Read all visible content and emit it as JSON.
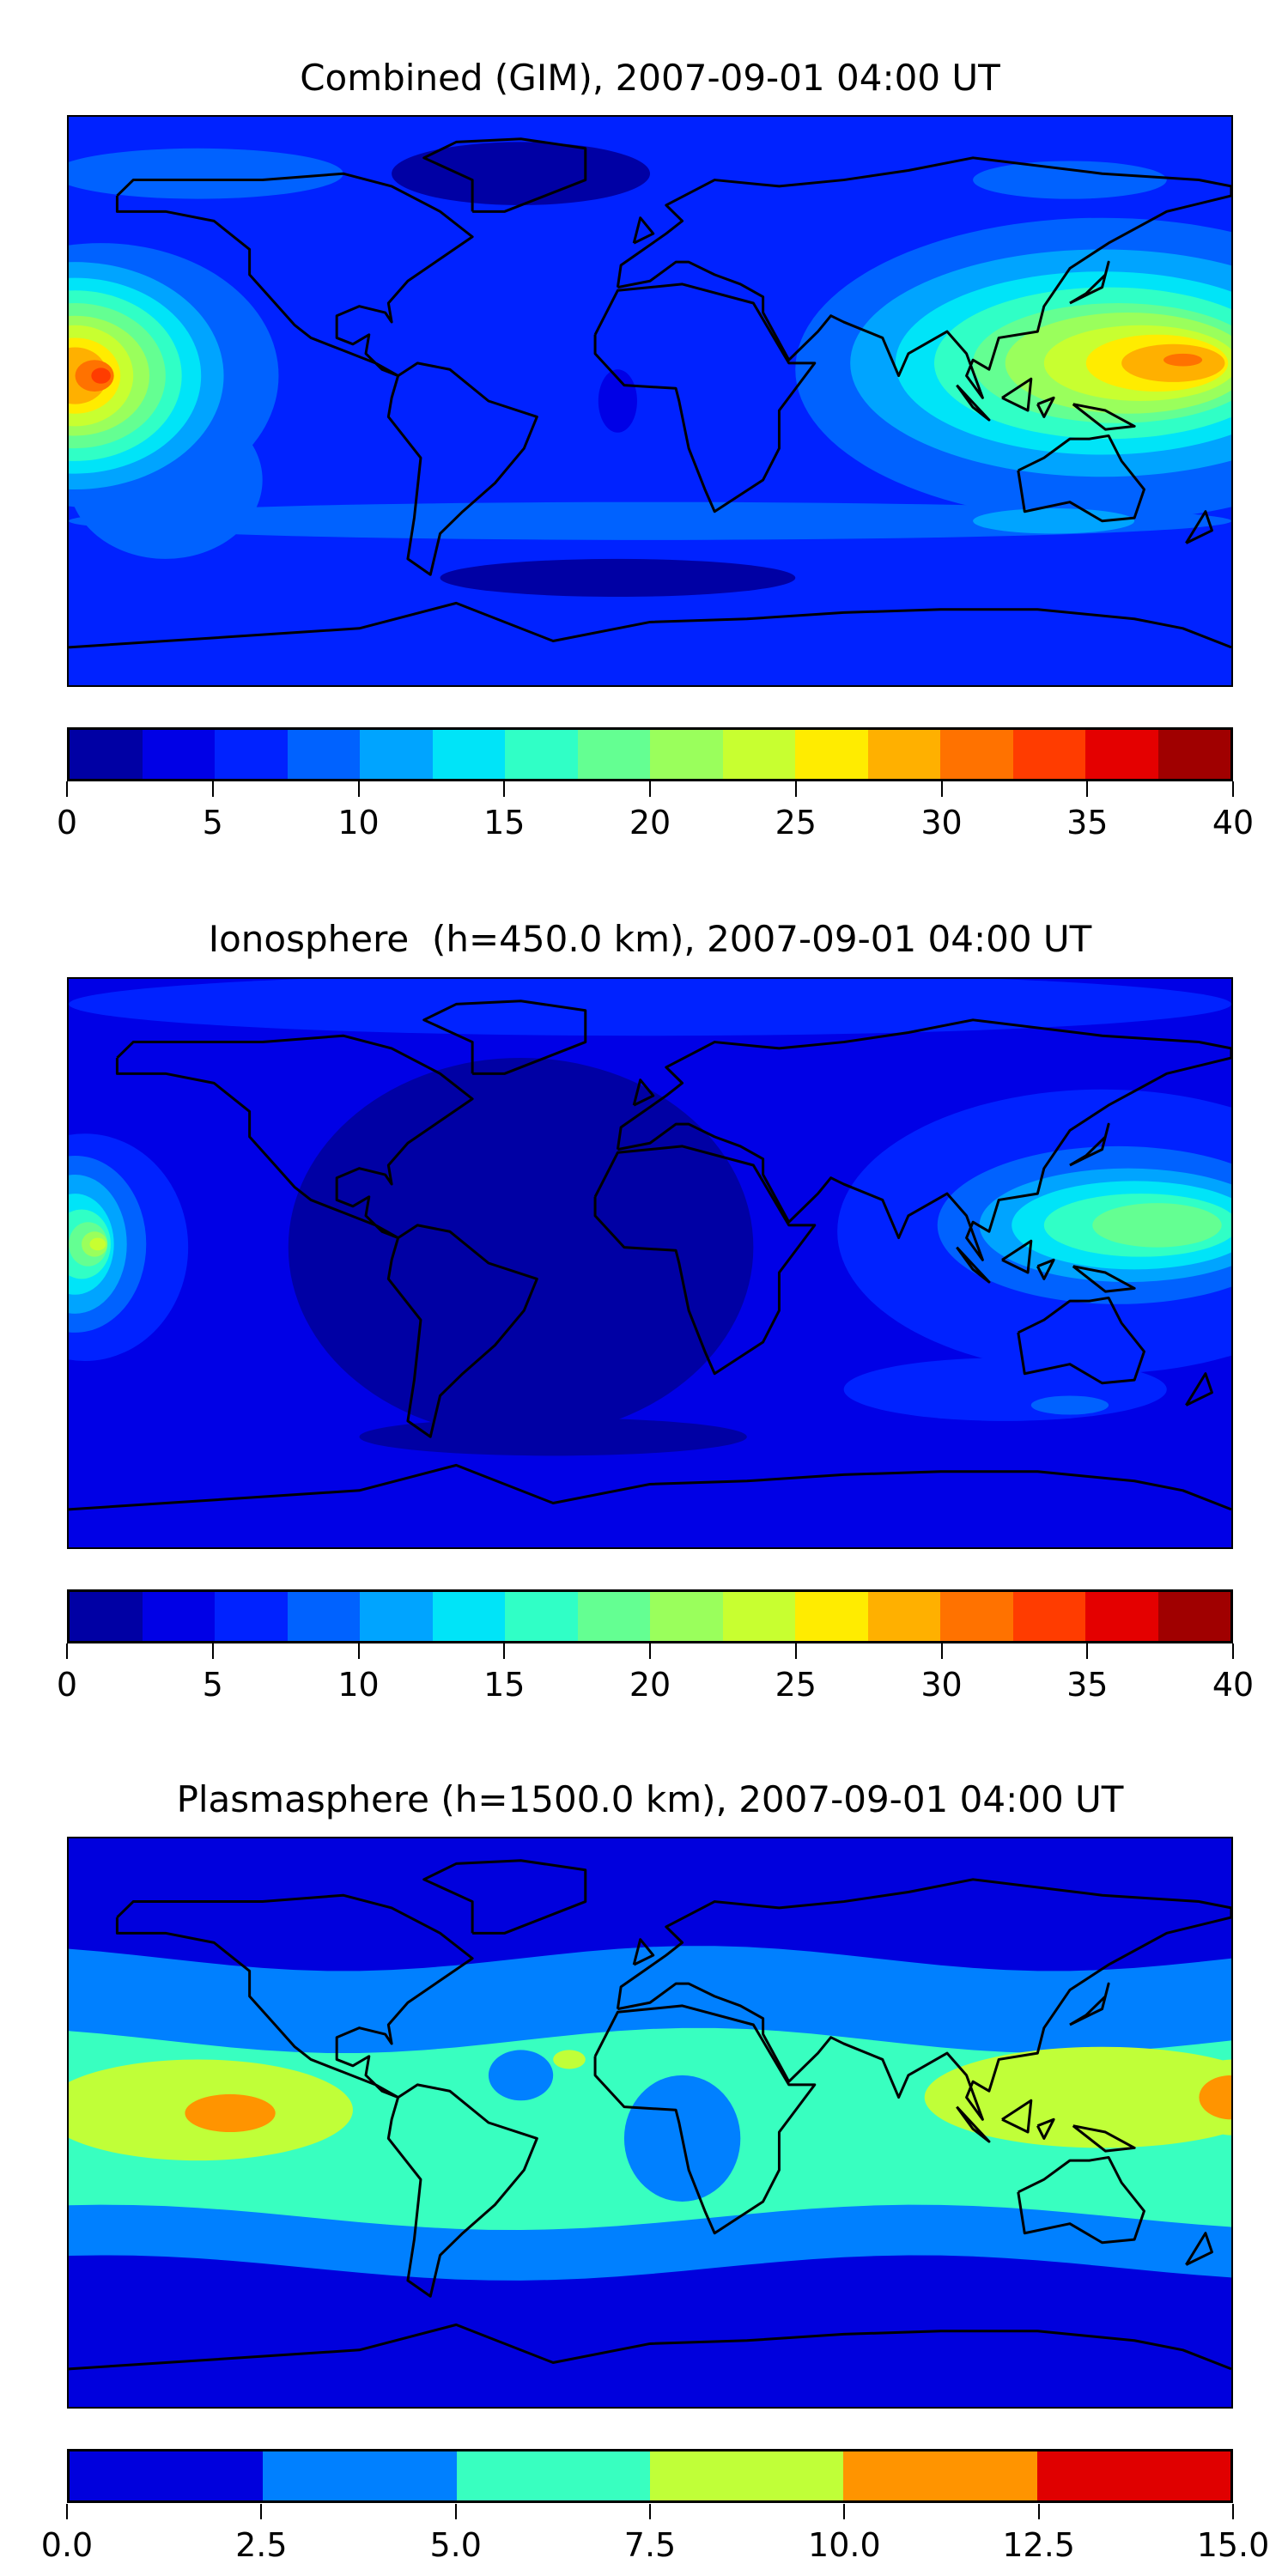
{
  "chart_data": [
    {
      "type": "heatmap",
      "title": "Combined (GIM), 2007-09-01 04:00 UT",
      "projection": "equirectangular world map with coastlines",
      "colorbar": {
        "levels": [
          0,
          2.5,
          5,
          7.5,
          10,
          12.5,
          15,
          17.5,
          20,
          22.5,
          25,
          27.5,
          30,
          32.5,
          35,
          37.5,
          40
        ],
        "tick_labels": [
          "0",
          "5",
          "10",
          "15",
          "20",
          "25",
          "30",
          "35",
          "40"
        ],
        "tick_values": [
          0,
          5,
          10,
          15,
          20,
          25,
          30,
          35,
          40
        ],
        "colors": [
          "#0000a4",
          "#0000e6",
          "#0022ff",
          "#0062ff",
          "#00a4ff",
          "#00e4f8",
          "#30ffc6",
          "#64ff92",
          "#9aff5c",
          "#c8ff30",
          "#ffec00",
          "#ffb000",
          "#ff7200",
          "#ff3c00",
          "#e40000",
          "#a00000"
        ]
      },
      "features": [
        {
          "region": "Central Pacific (lon -170, lat 10)",
          "peak_value_range": [
            32.5,
            35
          ]
        },
        {
          "region": "Western Pacific / SE Asia (lon 160, lat 13)",
          "peak_value_range": [
            30,
            32.5
          ]
        },
        {
          "region": "Atlantic / Americas",
          "value_range": [
            0,
            7.5
          ]
        }
      ]
    },
    {
      "type": "heatmap",
      "title": "Ionosphere  (h=450.0 km), 2007-09-01 04:00 UT",
      "projection": "equirectangular world map with coastlines",
      "colorbar": {
        "levels": [
          0,
          2.5,
          5,
          7.5,
          10,
          12.5,
          15,
          17.5,
          20,
          22.5,
          25,
          27.5,
          30,
          32.5,
          35,
          37.5,
          40
        ],
        "tick_labels": [
          "0",
          "5",
          "10",
          "15",
          "20",
          "25",
          "30",
          "35",
          "40"
        ],
        "tick_values": [
          0,
          5,
          10,
          15,
          20,
          25,
          30,
          35,
          40
        ],
        "colors": [
          "#0000a4",
          "#0000e6",
          "#0022ff",
          "#0062ff",
          "#00a4ff",
          "#00e4f8",
          "#30ffc6",
          "#64ff92",
          "#9aff5c",
          "#c8ff30",
          "#ffec00",
          "#ffb000",
          "#ff7200",
          "#ff3c00",
          "#e40000",
          "#a00000"
        ]
      },
      "features": [
        {
          "region": "Central Pacific (lon -170, lat 6)",
          "peak_value_range": [
            22.5,
            25
          ]
        },
        {
          "region": "Western Pacific / SE Asia (lon 150, lat 10)",
          "peak_value_range": [
            17.5,
            20
          ]
        },
        {
          "region": "Atlantic / Americas",
          "value_range": [
            0,
            2.5
          ]
        }
      ]
    },
    {
      "type": "heatmap",
      "title": "Plasmasphere (h=1500.0 km), 2007-09-01 04:00 UT",
      "projection": "equirectangular world map with coastlines",
      "colorbar": {
        "levels": [
          0,
          2.5,
          5,
          7.5,
          10,
          12.5,
          15
        ],
        "tick_labels": [
          "0.0",
          "2.5",
          "5.0",
          "7.5",
          "10.0",
          "12.5",
          "15.0"
        ],
        "tick_values": [
          0,
          2.5,
          5,
          7.5,
          10,
          12.5,
          15
        ],
        "colors": [
          "#0000dd",
          "#0080ff",
          "#38ffc0",
          "#c0ff38",
          "#ff9400",
          "#e00000"
        ]
      },
      "features": [
        {
          "region": "Central Pacific (lon -130, lat 5)",
          "peak_value_range": [
            10,
            12.5
          ]
        },
        {
          "region": "Western Pacific (lon 178, lat 8)",
          "peak_value_range": [
            10,
            12.5
          ]
        },
        {
          "region": "Polar latitudes",
          "value_range": [
            0,
            2.5
          ]
        }
      ]
    }
  ]
}
